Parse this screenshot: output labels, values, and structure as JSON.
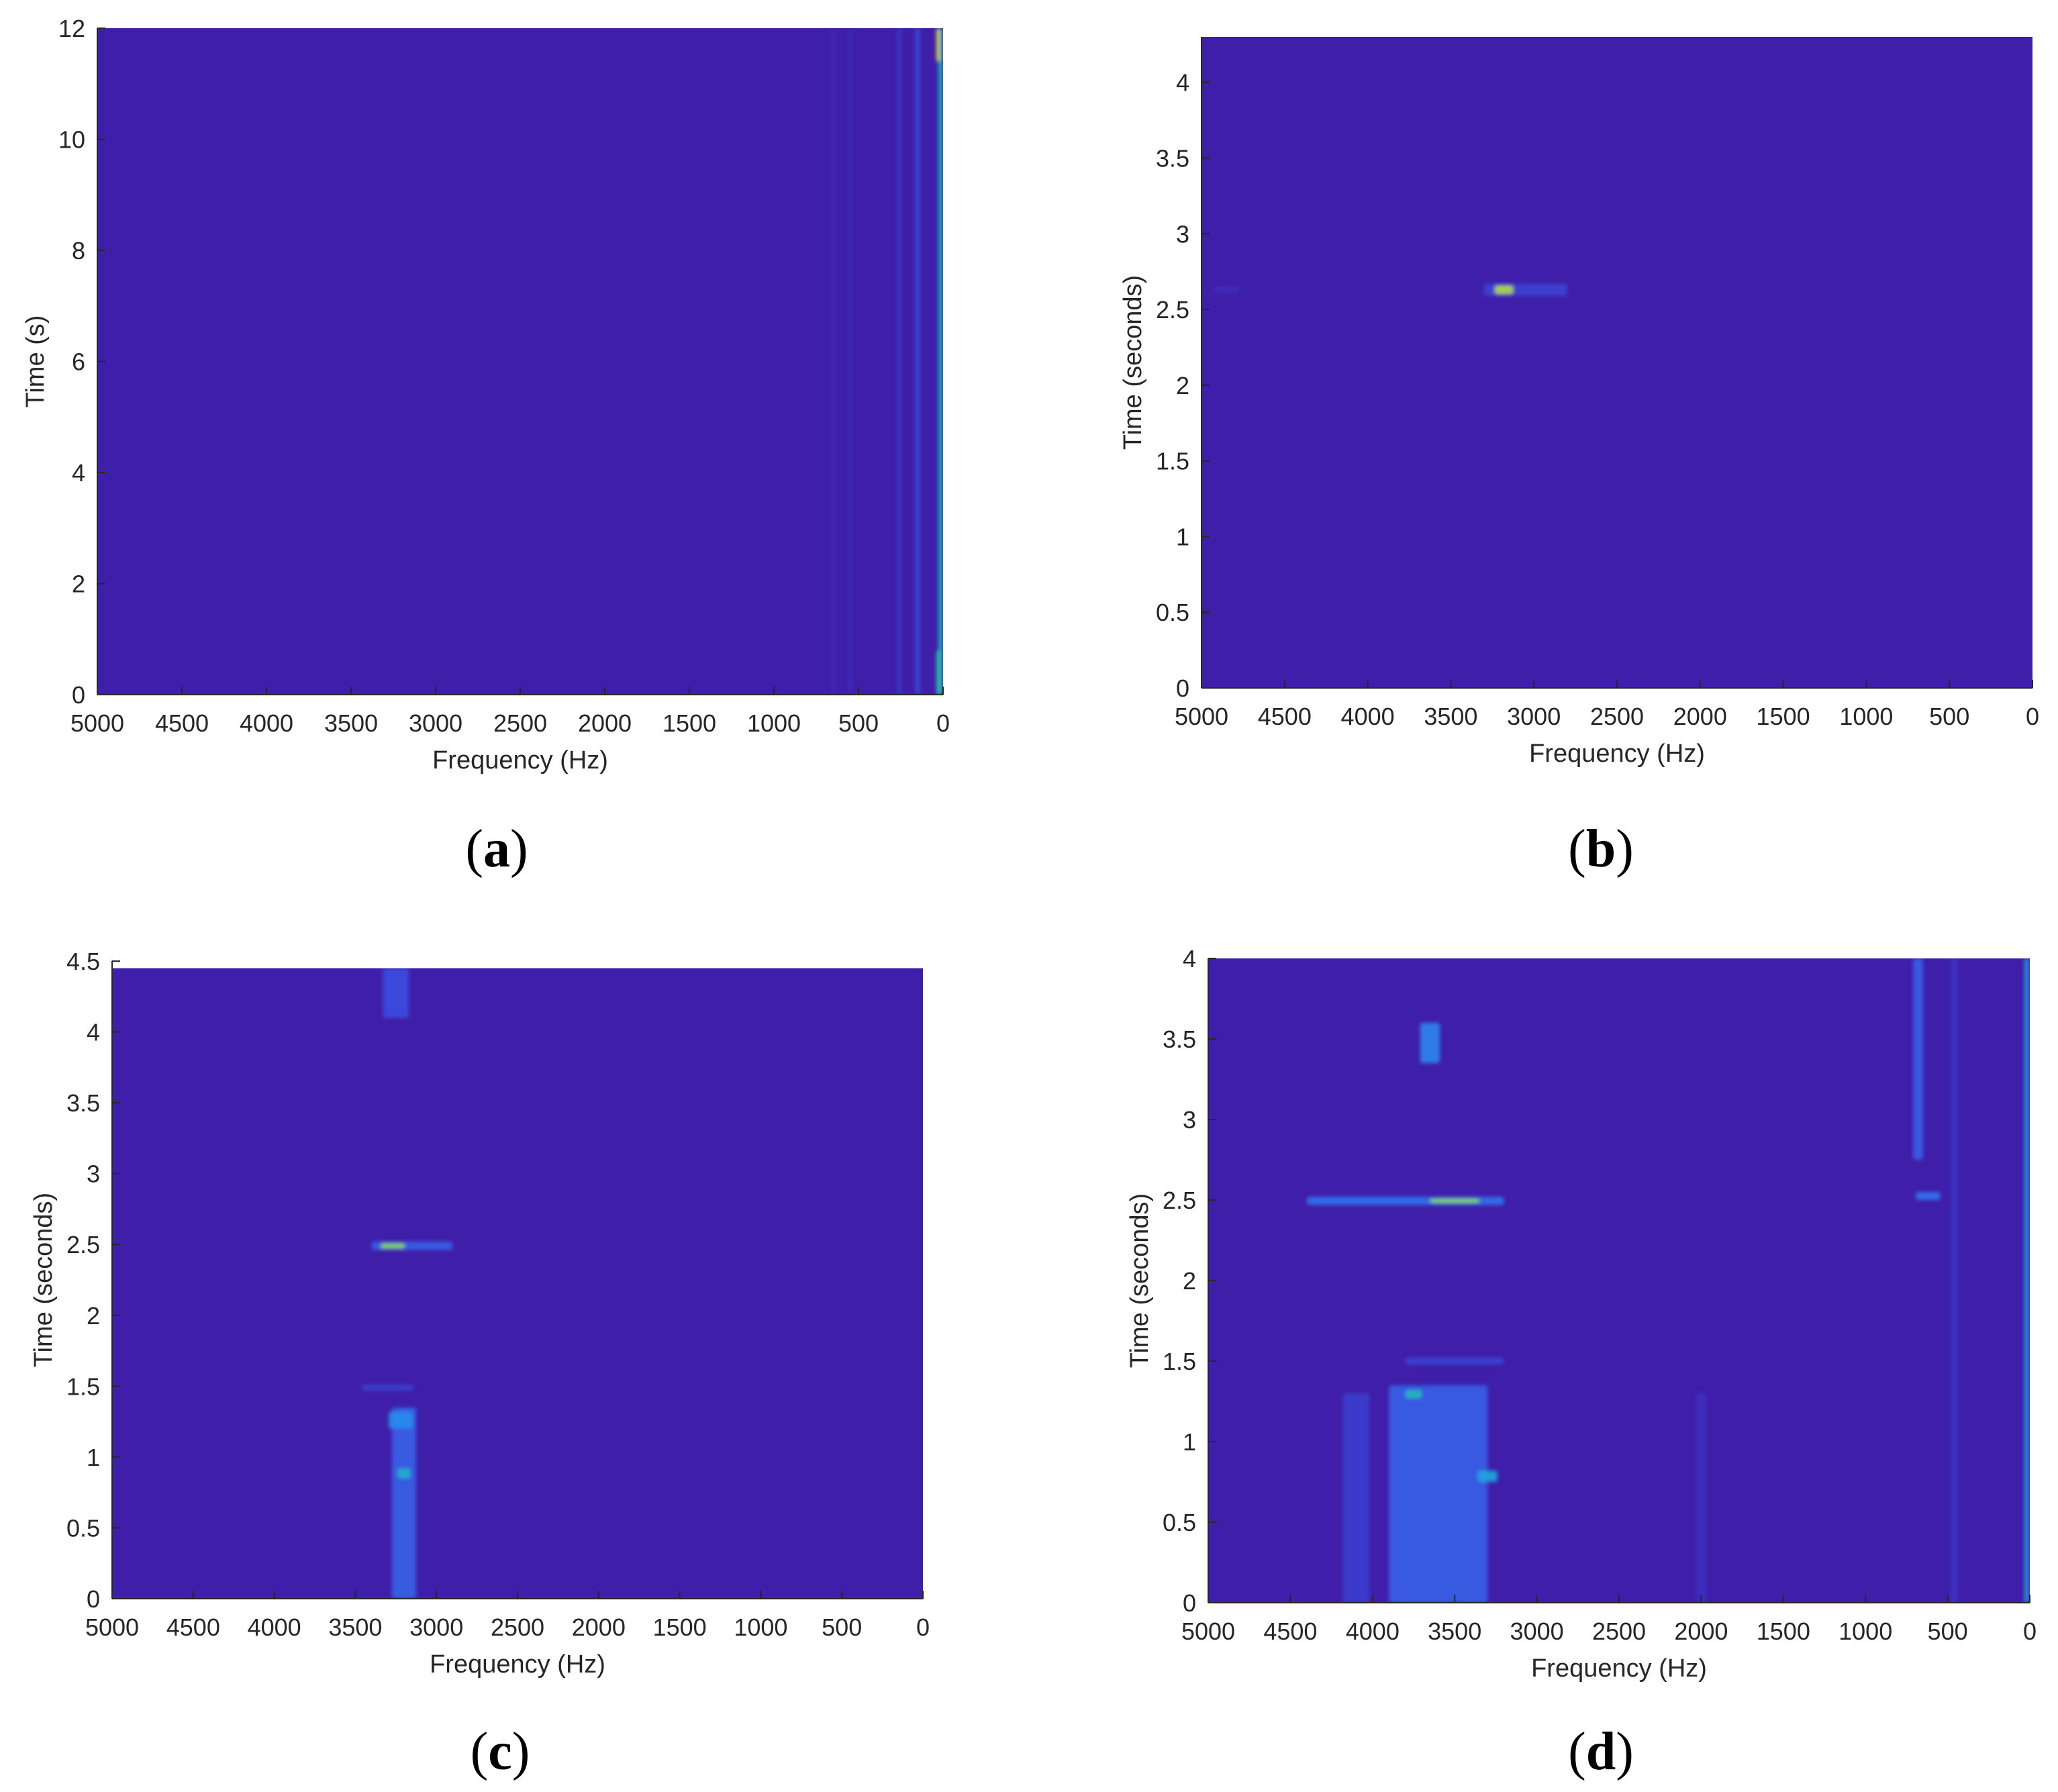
{
  "colors": {
    "background_field": "#3f1fa9",
    "colormap": [
      "#3e1aa6",
      "#3d2fbf",
      "#3a4ee0",
      "#2f7ef2",
      "#1fa8e0",
      "#20c4b0",
      "#5ed66e",
      "#c8dc3a",
      "#f6e32a"
    ]
  },
  "chart_data": [
    {
      "panel": "a",
      "caption_open": "(",
      "caption_letter": "a",
      "caption_close": ")",
      "type": "heatmap",
      "xlabel": "Frequency (Hz)",
      "ylabel": "Time (s)",
      "xlim": [
        5000,
        0
      ],
      "ylim": [
        0,
        12
      ],
      "xticks": [
        5000,
        4500,
        4000,
        3500,
        3000,
        2500,
        2000,
        1500,
        1000,
        500,
        0
      ],
      "yticks": [
        0,
        2,
        4,
        6,
        8,
        10,
        12
      ],
      "features": [
        {
          "f": 15,
          "t0": 0,
          "t1": 12,
          "df": 25,
          "intensity": 0.6
        },
        {
          "f": 30,
          "t0": 11.4,
          "t1": 12,
          "df": 20,
          "intensity": 0.95
        },
        {
          "f": 30,
          "t0": 0,
          "t1": 0.8,
          "df": 20,
          "intensity": 0.65
        },
        {
          "f": 150,
          "t0": 0,
          "t1": 12,
          "df": 25,
          "intensity": 0.25
        },
        {
          "f": 260,
          "t0": 0,
          "t1": 12,
          "df": 20,
          "intensity": 0.18
        },
        {
          "f": 550,
          "t0": 0,
          "t1": 12,
          "df": 20,
          "intensity": 0.1
        },
        {
          "f": 650,
          "t0": 0,
          "t1": 12,
          "df": 20,
          "intensity": 0.09
        }
      ]
    },
    {
      "panel": "b",
      "caption_open": "(",
      "caption_letter": "b",
      "caption_close": ")",
      "type": "heatmap",
      "xlabel": "Frequency (Hz)",
      "ylabel": "Time (seconds)",
      "xlim": [
        5000,
        0
      ],
      "ylim": [
        0,
        4.3
      ],
      "xticks": [
        5000,
        4500,
        4000,
        3500,
        3000,
        2500,
        2000,
        1500,
        1000,
        500,
        0
      ],
      "yticks": [
        0,
        0.5,
        1,
        1.5,
        2,
        2.5,
        3,
        3.5,
        4
      ],
      "features": [
        {
          "f": 3050,
          "t0": 2.59,
          "t1": 2.67,
          "df": 500,
          "intensity": 0.2
        },
        {
          "f": 3180,
          "t0": 2.6,
          "t1": 2.66,
          "df": 110,
          "intensity": 0.85
        },
        {
          "f": 4850,
          "t0": 2.61,
          "t1": 2.65,
          "df": 150,
          "intensity": 0.1
        }
      ]
    },
    {
      "panel": "c",
      "caption_open": "(",
      "caption_letter": "c",
      "caption_close": ")",
      "type": "heatmap",
      "xlabel": "Frequency (Hz)",
      "ylabel": "Time (seconds)",
      "xlim": [
        5000,
        0
      ],
      "ylim": [
        0,
        4.5
      ],
      "data_top": 4.45,
      "xticks": [
        5000,
        4500,
        4000,
        3500,
        3000,
        2500,
        2000,
        1500,
        1000,
        500,
        0
      ],
      "yticks": [
        0,
        0.5,
        1,
        1.5,
        2,
        2.5,
        3,
        3.5,
        4,
        4.5
      ],
      "features": [
        {
          "f": 3150,
          "t0": 2.46,
          "t1": 2.52,
          "df": 500,
          "intensity": 0.3
        },
        {
          "f": 3270,
          "t0": 2.47,
          "t1": 2.51,
          "df": 150,
          "intensity": 0.8
        },
        {
          "f": 3250,
          "t0": 4.1,
          "t1": 4.45,
          "df": 160,
          "intensity": 0.25
        },
        {
          "f": 3200,
          "t0": 0,
          "t1": 1.35,
          "df": 150,
          "intensity": 0.3
        },
        {
          "f": 3220,
          "t0": 1.2,
          "t1": 1.32,
          "df": 150,
          "intensity": 0.42
        },
        {
          "f": 3200,
          "t0": 0.85,
          "t1": 0.92,
          "df": 80,
          "intensity": 0.55
        },
        {
          "f": 3300,
          "t0": 1.47,
          "t1": 1.51,
          "df": 320,
          "intensity": 0.2
        }
      ]
    },
    {
      "panel": "d",
      "caption_open": "(",
      "caption_letter": "d",
      "caption_close": ")",
      "type": "heatmap",
      "xlabel": "Frequency (Hz)",
      "ylabel": "Time (seconds)",
      "xlim": [
        5000,
        0
      ],
      "ylim": [
        0,
        4
      ],
      "xticks": [
        5000,
        4500,
        4000,
        3500,
        3000,
        2500,
        2000,
        1500,
        1000,
        500,
        0
      ],
      "yticks": [
        0,
        0.5,
        1,
        1.5,
        2,
        2.5,
        3,
        3.5,
        4
      ],
      "features": [
        {
          "f": 20,
          "t0": 0,
          "t1": 4,
          "df": 25,
          "intensity": 0.5
        },
        {
          "f": 3800,
          "t0": 2.47,
          "t1": 2.52,
          "df": 1200,
          "intensity": 0.35
        },
        {
          "f": 3500,
          "t0": 2.48,
          "t1": 2.51,
          "df": 300,
          "intensity": 0.8
        },
        {
          "f": 3600,
          "t0": 0,
          "t1": 1.35,
          "df": 600,
          "intensity": 0.3
        },
        {
          "f": 3750,
          "t0": 1.27,
          "t1": 1.32,
          "df": 100,
          "intensity": 0.6
        },
        {
          "f": 3300,
          "t0": 0.75,
          "t1": 0.82,
          "df": 120,
          "intensity": 0.5
        },
        {
          "f": 3650,
          "t0": 3.35,
          "t1": 3.6,
          "df": 120,
          "intensity": 0.4
        },
        {
          "f": 680,
          "t0": 2.75,
          "t1": 4,
          "df": 60,
          "intensity": 0.3
        },
        {
          "f": 460,
          "t0": 0,
          "t1": 4,
          "df": 40,
          "intensity": 0.15
        },
        {
          "f": 620,
          "t0": 2.5,
          "t1": 2.55,
          "df": 150,
          "intensity": 0.35
        },
        {
          "f": 2000,
          "t0": 0,
          "t1": 1.3,
          "df": 60,
          "intensity": 0.12
        },
        {
          "f": 4100,
          "t0": 0,
          "t1": 1.3,
          "df": 160,
          "intensity": 0.18
        },
        {
          "f": 3500,
          "t0": 1.48,
          "t1": 1.52,
          "df": 600,
          "intensity": 0.22
        }
      ]
    }
  ]
}
